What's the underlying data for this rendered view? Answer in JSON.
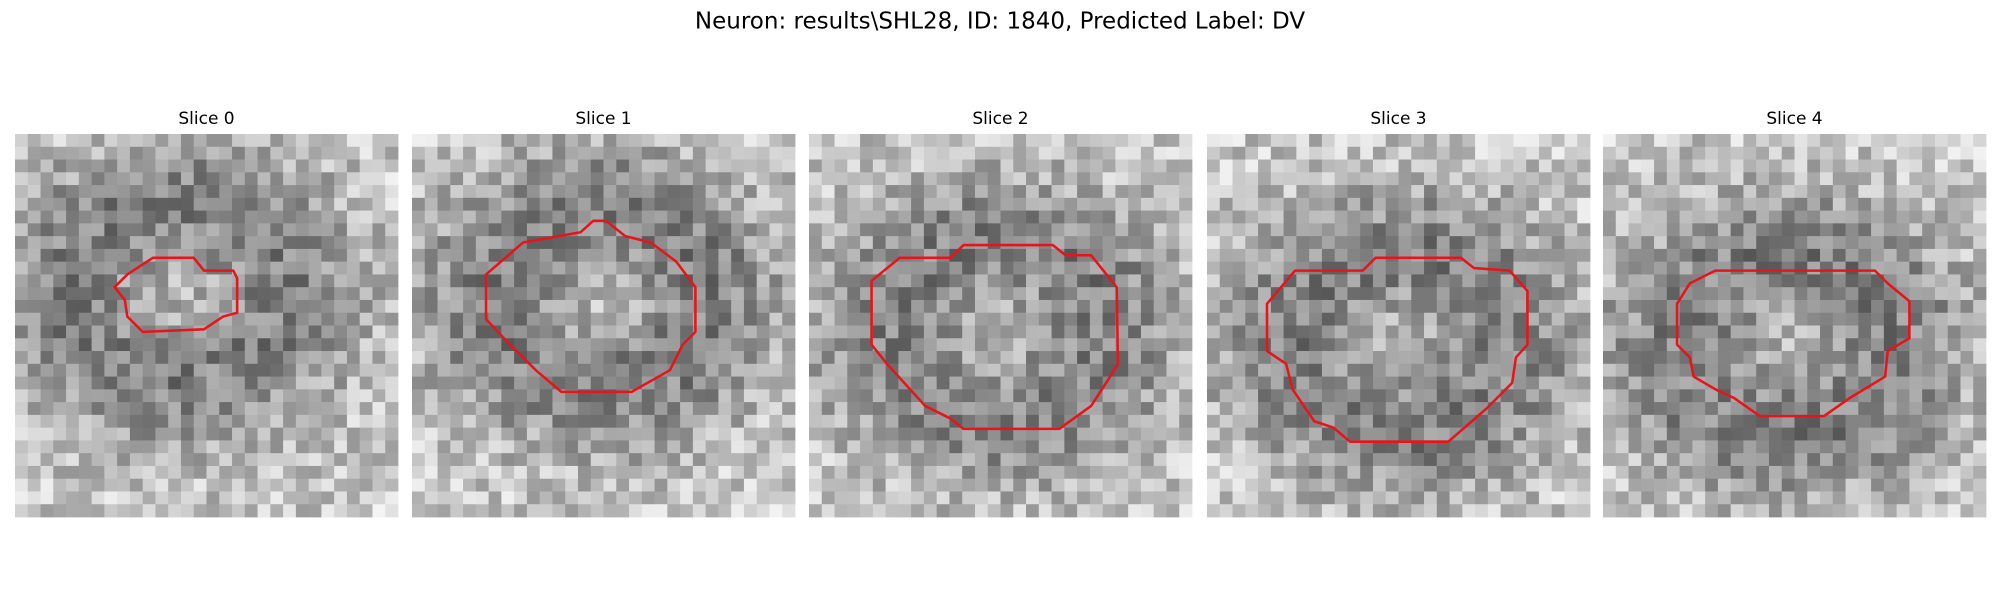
{
  "title": "Neuron: results\\SHL28, ID: 1840, Predicted Label: DV",
  "panels": [
    {
      "label": "Slice 0"
    },
    {
      "label": "Slice 1"
    },
    {
      "label": "Slice 2"
    },
    {
      "label": "Slice 3"
    },
    {
      "label": "Slice 4"
    }
  ]
}
